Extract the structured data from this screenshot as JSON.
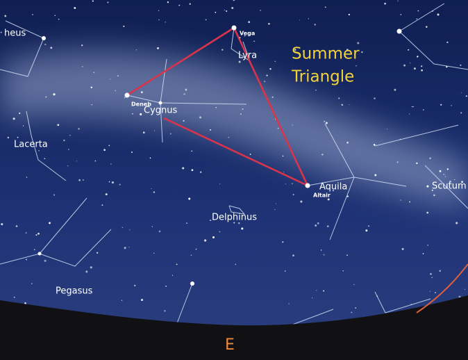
{
  "labels": {
    "cepheus": "heus",
    "vega": "Vega",
    "lyra": "Lyra",
    "summer_triangle": [
      "Summer",
      "Triangle"
    ],
    "deneb": "Deneb",
    "cygnus": "Cygnus",
    "lacerta": "Lacerta",
    "aquila": "Aquila",
    "altair": "Altair",
    "scutum": "Scutum",
    "delphinus": "Delphinus",
    "pegasus": "Pegasus",
    "direction": "E"
  }
}
